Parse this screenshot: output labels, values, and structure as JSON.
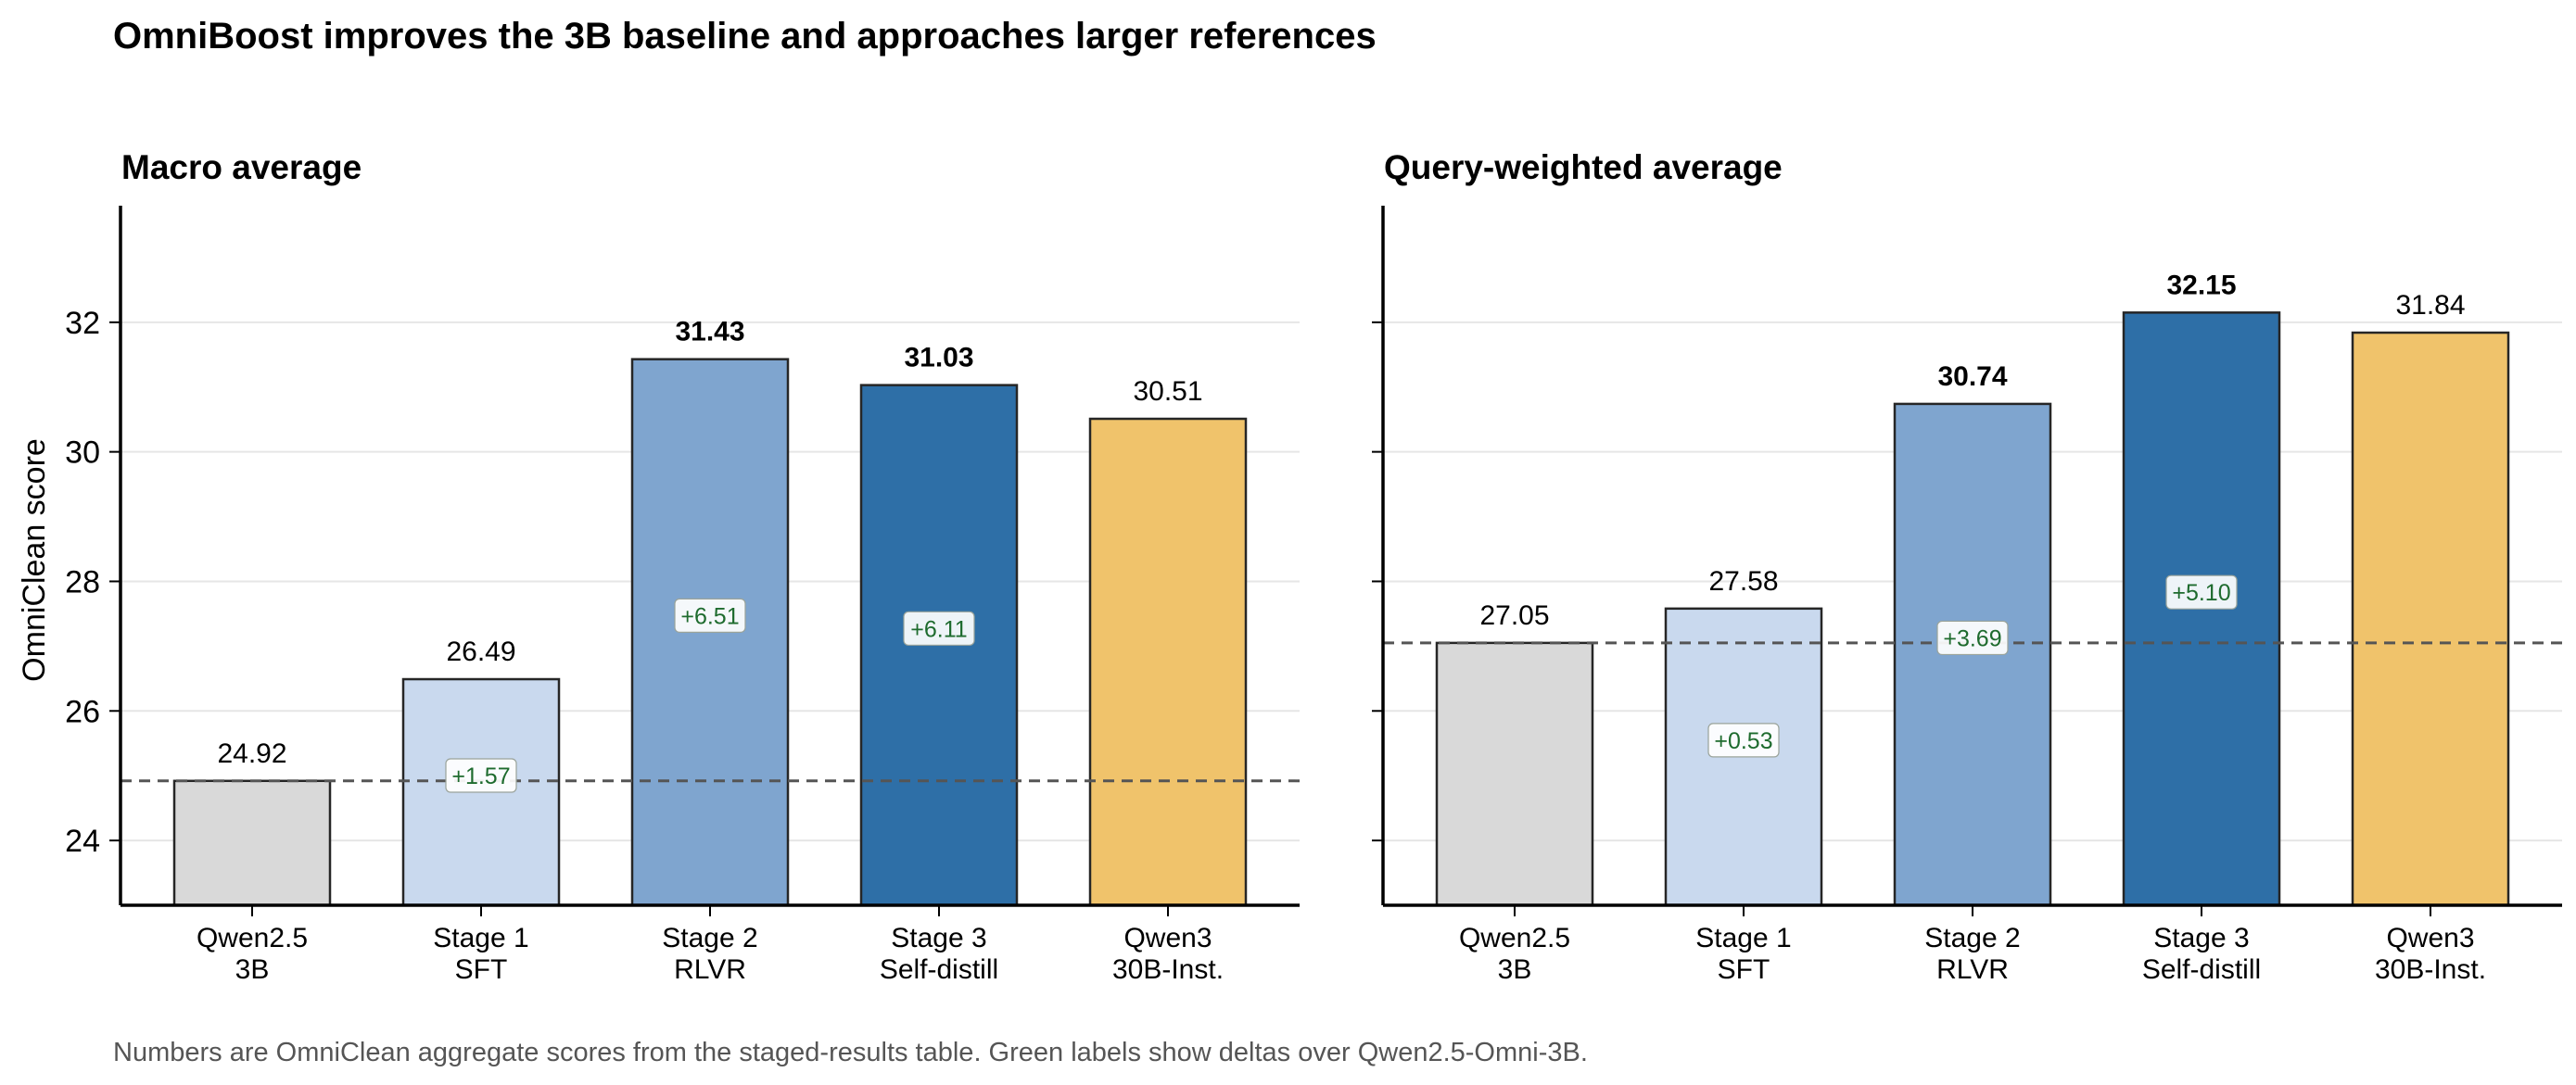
{
  "figure_title": "OmniBoost improves the 3B baseline and approaches larger references",
  "caption": "Numbers are OmniClean aggregate scores from the staged-results table. Green labels show deltas over Qwen2.5-Omni-3B.",
  "colors": {
    "baseline": "#d9d9d9",
    "stage1": "#c9d9ee",
    "stage2": "#7fa5cf",
    "stage3": "#2e6fa7",
    "reference": "#f0c36b",
    "delta_text": "#1e6b2e",
    "dashed_line": "#555555",
    "grid": "#e6e6e6"
  },
  "chart_data": [
    {
      "type": "bar",
      "title": "Macro average",
      "ylabel": "OmniClean score",
      "xlabel": "",
      "ylim": [
        23.0,
        33.8
      ],
      "yticks": [
        24,
        26,
        28,
        30,
        32
      ],
      "grid": "horizontal",
      "baseline_reference": 24.92,
      "categories": [
        [
          "Qwen2.5",
          "3B"
        ],
        [
          "Stage 1",
          "SFT"
        ],
        [
          "Stage 2",
          "RLVR"
        ],
        [
          "Stage 3",
          "Self-distill"
        ],
        [
          "Qwen3",
          "30B-Inst."
        ]
      ],
      "values": [
        24.92,
        26.49,
        31.43,
        31.03,
        30.51
      ],
      "value_labels": [
        "24.92",
        "26.49",
        "31.43",
        "31.03",
        "30.51"
      ],
      "bold_labels": [
        false,
        false,
        true,
        true,
        false
      ],
      "deltas": [
        null,
        "+1.57",
        "+6.51",
        "+6.11",
        null
      ],
      "bar_colors": [
        "#d9d9d9",
        "#c9d9ee",
        "#7fa5cf",
        "#2e6fa7",
        "#f0c36b"
      ]
    },
    {
      "type": "bar",
      "title": "Query-weighted average",
      "ylabel": "",
      "xlabel": "",
      "ylim": [
        23.0,
        33.8
      ],
      "yticks": [
        24,
        26,
        28,
        30,
        32
      ],
      "grid": "horizontal",
      "baseline_reference": 27.05,
      "categories": [
        [
          "Qwen2.5",
          "3B"
        ],
        [
          "Stage 1",
          "SFT"
        ],
        [
          "Stage 2",
          "RLVR"
        ],
        [
          "Stage 3",
          "Self-distill"
        ],
        [
          "Qwen3",
          "30B-Inst."
        ]
      ],
      "values": [
        27.05,
        27.58,
        30.74,
        32.15,
        31.84
      ],
      "value_labels": [
        "27.05",
        "27.58",
        "30.74",
        "32.15",
        "31.84"
      ],
      "bold_labels": [
        false,
        false,
        true,
        true,
        false
      ],
      "deltas": [
        null,
        "+0.53",
        "+3.69",
        "+5.10",
        null
      ],
      "bar_colors": [
        "#d9d9d9",
        "#c9d9ee",
        "#7fa5cf",
        "#2e6fa7",
        "#f0c36b"
      ]
    }
  ]
}
